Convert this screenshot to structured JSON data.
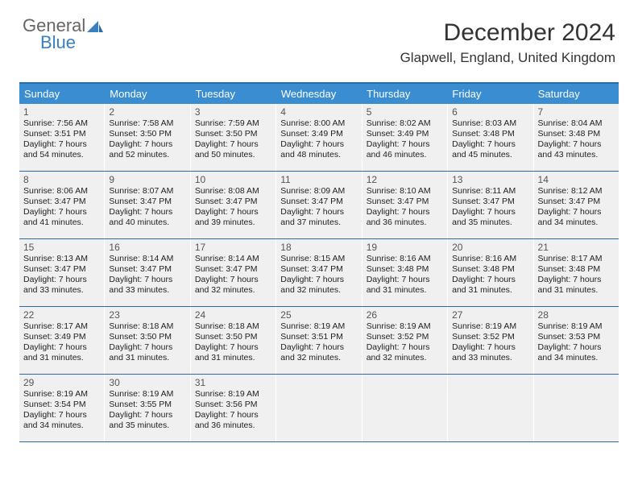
{
  "logo": {
    "line1": "General",
    "line2": "Blue"
  },
  "title": "December 2024",
  "location": "Glapwell, England, United Kingdom",
  "headers": [
    "Sunday",
    "Monday",
    "Tuesday",
    "Wednesday",
    "Thursday",
    "Friday",
    "Saturday"
  ],
  "colors": {
    "header_bg": "#3a8dd0",
    "header_text": "#ffffff",
    "rule": "#2a6ca8",
    "cell_bg": "#f0f0f0",
    "logo_blue": "#3a7fbf"
  },
  "weeks": [
    [
      {
        "n": "1",
        "sr": "Sunrise: 7:56 AM",
        "ss": "Sunset: 3:51 PM",
        "d1": "Daylight: 7 hours",
        "d2": "and 54 minutes."
      },
      {
        "n": "2",
        "sr": "Sunrise: 7:58 AM",
        "ss": "Sunset: 3:50 PM",
        "d1": "Daylight: 7 hours",
        "d2": "and 52 minutes."
      },
      {
        "n": "3",
        "sr": "Sunrise: 7:59 AM",
        "ss": "Sunset: 3:50 PM",
        "d1": "Daylight: 7 hours",
        "d2": "and 50 minutes."
      },
      {
        "n": "4",
        "sr": "Sunrise: 8:00 AM",
        "ss": "Sunset: 3:49 PM",
        "d1": "Daylight: 7 hours",
        "d2": "and 48 minutes."
      },
      {
        "n": "5",
        "sr": "Sunrise: 8:02 AM",
        "ss": "Sunset: 3:49 PM",
        "d1": "Daylight: 7 hours",
        "d2": "and 46 minutes."
      },
      {
        "n": "6",
        "sr": "Sunrise: 8:03 AM",
        "ss": "Sunset: 3:48 PM",
        "d1": "Daylight: 7 hours",
        "d2": "and 45 minutes."
      },
      {
        "n": "7",
        "sr": "Sunrise: 8:04 AM",
        "ss": "Sunset: 3:48 PM",
        "d1": "Daylight: 7 hours",
        "d2": "and 43 minutes."
      }
    ],
    [
      {
        "n": "8",
        "sr": "Sunrise: 8:06 AM",
        "ss": "Sunset: 3:47 PM",
        "d1": "Daylight: 7 hours",
        "d2": "and 41 minutes."
      },
      {
        "n": "9",
        "sr": "Sunrise: 8:07 AM",
        "ss": "Sunset: 3:47 PM",
        "d1": "Daylight: 7 hours",
        "d2": "and 40 minutes."
      },
      {
        "n": "10",
        "sr": "Sunrise: 8:08 AM",
        "ss": "Sunset: 3:47 PM",
        "d1": "Daylight: 7 hours",
        "d2": "and 39 minutes."
      },
      {
        "n": "11",
        "sr": "Sunrise: 8:09 AM",
        "ss": "Sunset: 3:47 PM",
        "d1": "Daylight: 7 hours",
        "d2": "and 37 minutes."
      },
      {
        "n": "12",
        "sr": "Sunrise: 8:10 AM",
        "ss": "Sunset: 3:47 PM",
        "d1": "Daylight: 7 hours",
        "d2": "and 36 minutes."
      },
      {
        "n": "13",
        "sr": "Sunrise: 8:11 AM",
        "ss": "Sunset: 3:47 PM",
        "d1": "Daylight: 7 hours",
        "d2": "and 35 minutes."
      },
      {
        "n": "14",
        "sr": "Sunrise: 8:12 AM",
        "ss": "Sunset: 3:47 PM",
        "d1": "Daylight: 7 hours",
        "d2": "and 34 minutes."
      }
    ],
    [
      {
        "n": "15",
        "sr": "Sunrise: 8:13 AM",
        "ss": "Sunset: 3:47 PM",
        "d1": "Daylight: 7 hours",
        "d2": "and 33 minutes."
      },
      {
        "n": "16",
        "sr": "Sunrise: 8:14 AM",
        "ss": "Sunset: 3:47 PM",
        "d1": "Daylight: 7 hours",
        "d2": "and 33 minutes."
      },
      {
        "n": "17",
        "sr": "Sunrise: 8:14 AM",
        "ss": "Sunset: 3:47 PM",
        "d1": "Daylight: 7 hours",
        "d2": "and 32 minutes."
      },
      {
        "n": "18",
        "sr": "Sunrise: 8:15 AM",
        "ss": "Sunset: 3:47 PM",
        "d1": "Daylight: 7 hours",
        "d2": "and 32 minutes."
      },
      {
        "n": "19",
        "sr": "Sunrise: 8:16 AM",
        "ss": "Sunset: 3:48 PM",
        "d1": "Daylight: 7 hours",
        "d2": "and 31 minutes."
      },
      {
        "n": "20",
        "sr": "Sunrise: 8:16 AM",
        "ss": "Sunset: 3:48 PM",
        "d1": "Daylight: 7 hours",
        "d2": "and 31 minutes."
      },
      {
        "n": "21",
        "sr": "Sunrise: 8:17 AM",
        "ss": "Sunset: 3:48 PM",
        "d1": "Daylight: 7 hours",
        "d2": "and 31 minutes."
      }
    ],
    [
      {
        "n": "22",
        "sr": "Sunrise: 8:17 AM",
        "ss": "Sunset: 3:49 PM",
        "d1": "Daylight: 7 hours",
        "d2": "and 31 minutes."
      },
      {
        "n": "23",
        "sr": "Sunrise: 8:18 AM",
        "ss": "Sunset: 3:50 PM",
        "d1": "Daylight: 7 hours",
        "d2": "and 31 minutes."
      },
      {
        "n": "24",
        "sr": "Sunrise: 8:18 AM",
        "ss": "Sunset: 3:50 PM",
        "d1": "Daylight: 7 hours",
        "d2": "and 31 minutes."
      },
      {
        "n": "25",
        "sr": "Sunrise: 8:19 AM",
        "ss": "Sunset: 3:51 PM",
        "d1": "Daylight: 7 hours",
        "d2": "and 32 minutes."
      },
      {
        "n": "26",
        "sr": "Sunrise: 8:19 AM",
        "ss": "Sunset: 3:52 PM",
        "d1": "Daylight: 7 hours",
        "d2": "and 32 minutes."
      },
      {
        "n": "27",
        "sr": "Sunrise: 8:19 AM",
        "ss": "Sunset: 3:52 PM",
        "d1": "Daylight: 7 hours",
        "d2": "and 33 minutes."
      },
      {
        "n": "28",
        "sr": "Sunrise: 8:19 AM",
        "ss": "Sunset: 3:53 PM",
        "d1": "Daylight: 7 hours",
        "d2": "and 34 minutes."
      }
    ],
    [
      {
        "n": "29",
        "sr": "Sunrise: 8:19 AM",
        "ss": "Sunset: 3:54 PM",
        "d1": "Daylight: 7 hours",
        "d2": "and 34 minutes."
      },
      {
        "n": "30",
        "sr": "Sunrise: 8:19 AM",
        "ss": "Sunset: 3:55 PM",
        "d1": "Daylight: 7 hours",
        "d2": "and 35 minutes."
      },
      {
        "n": "31",
        "sr": "Sunrise: 8:19 AM",
        "ss": "Sunset: 3:56 PM",
        "d1": "Daylight: 7 hours",
        "d2": "and 36 minutes."
      },
      null,
      null,
      null,
      null
    ]
  ]
}
